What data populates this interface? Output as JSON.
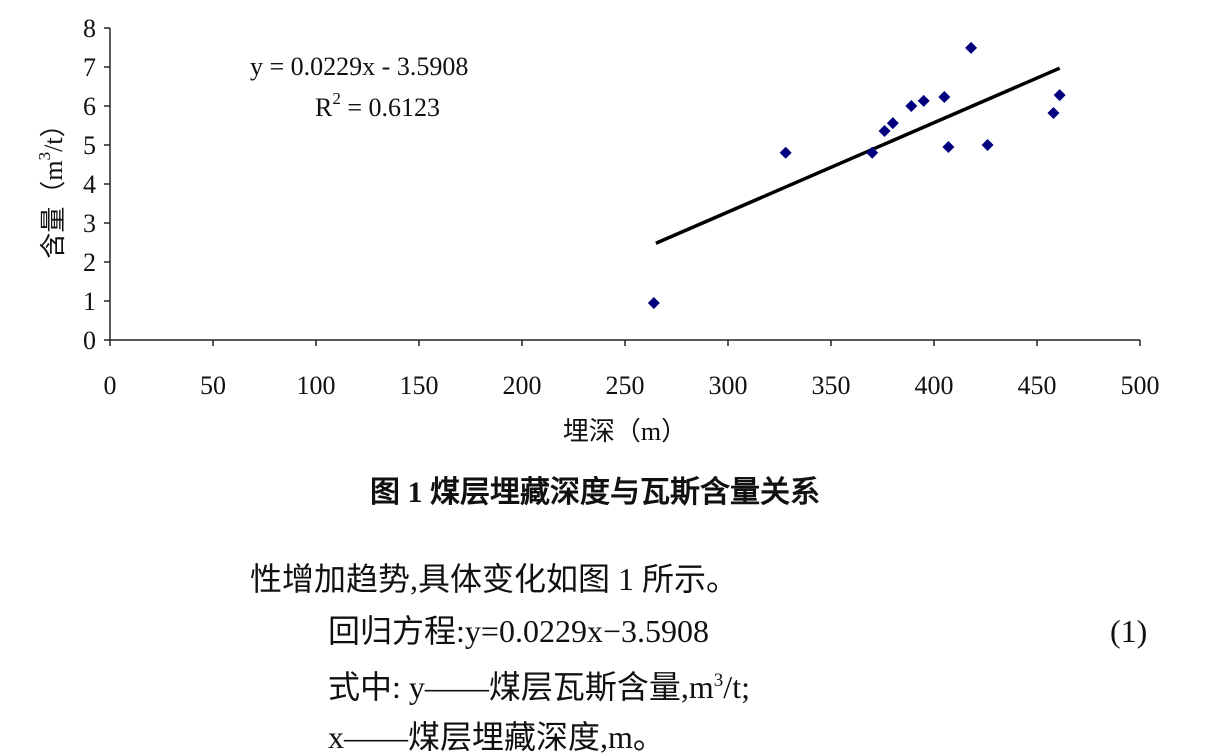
{
  "chart_data": {
    "type": "scatter",
    "series": [
      {
        "color": "#00007f",
        "x": [
          264,
          328,
          370,
          376,
          380,
          389,
          395,
          405,
          407,
          418,
          426,
          458,
          461
        ],
        "values": [
          0.95,
          4.8,
          4.8,
          5.36,
          5.56,
          6.0,
          6.13,
          6.23,
          4.95,
          7.49,
          5.0,
          5.82,
          6.28
        ]
      }
    ],
    "trendline": {
      "color": "#000000",
      "x": [
        265,
        461
      ],
      "values": [
        2.48,
        6.97
      ]
    },
    "equation": "y = 0.0229x - 3.5908",
    "r_squared": [
      "R",
      "2",
      " = 0.6123"
    ],
    "xlabel": "埋深（m）",
    "ylabel": [
      "含量（m",
      "3",
      "/t）"
    ],
    "xlim": [
      0,
      500
    ],
    "xticks": [
      0,
      50,
      100,
      150,
      200,
      250,
      300,
      350,
      400,
      450,
      500
    ],
    "ylim": [
      0,
      8
    ],
    "yticks": [
      0,
      1,
      2,
      3,
      4,
      5,
      6,
      7,
      8
    ]
  },
  "caption": "图 1  煤层埋藏深度与瓦斯含量关系",
  "body": {
    "line1": "性增加趋势,具体变化如图 1 所示。",
    "line2": "回归方程:y=0.0229x−3.5908",
    "eq_number": "(1)",
    "line3": [
      "式中: y——煤层瓦斯含量,m",
      "3",
      "/t;"
    ],
    "line4": "x——煤层埋藏深度,m。"
  }
}
